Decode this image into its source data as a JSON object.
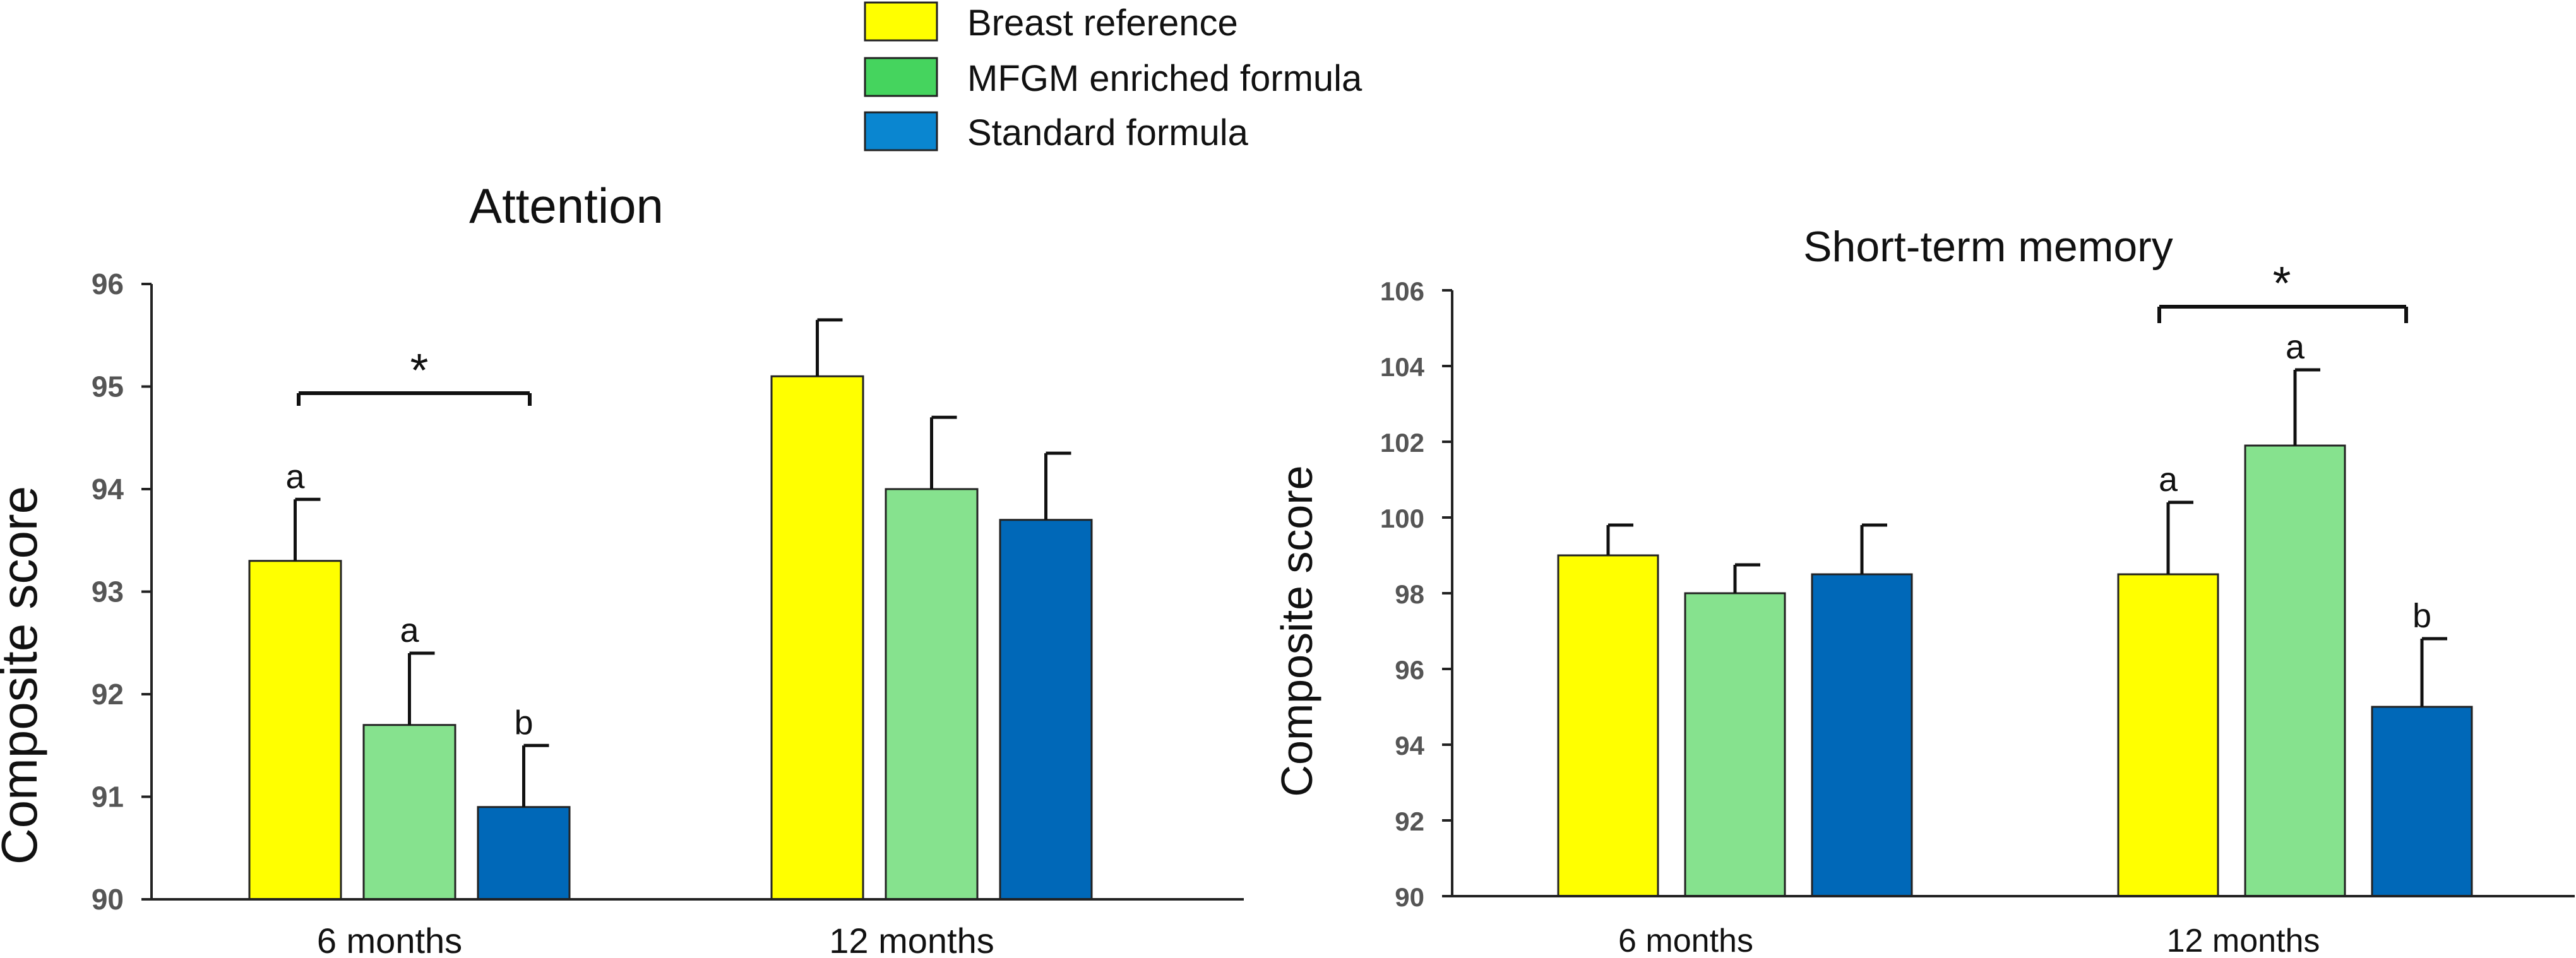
{
  "legend": [
    {
      "label": "Breast reference",
      "color": "#FFFF00"
    },
    {
      "label": "MFGM enriched formula",
      "color": "#45D45E"
    },
    {
      "label": "Standard formula",
      "color": "#0A86D0"
    }
  ],
  "series_colors": [
    "#FFFF00",
    "#86E28E",
    "#0068B8"
  ],
  "chart_data": [
    {
      "type": "bar",
      "title": "Attention",
      "xlabel": "",
      "ylabel": "Composite score",
      "ylim": [
        90,
        96
      ],
      "yticks": [
        "90",
        "91",
        "92",
        "93",
        "94",
        "95",
        "96"
      ],
      "categories": [
        "6 months",
        "12 months"
      ],
      "series": [
        {
          "name": "Breast reference",
          "values": [
            93.3,
            95.1
          ],
          "errors": [
            0.6,
            0.55
          ],
          "letters": [
            "a",
            ""
          ]
        },
        {
          "name": "MFGM enriched formula",
          "values": [
            91.7,
            94.0
          ],
          "errors": [
            0.7,
            0.7
          ],
          "letters": [
            "a",
            ""
          ]
        },
        {
          "name": "Standard formula",
          "values": [
            90.9,
            93.7
          ],
          "errors": [
            0.6,
            0.65
          ],
          "letters": [
            "b",
            ""
          ]
        }
      ],
      "significance": {
        "label": "*",
        "category": "6 months",
        "from_series": 0,
        "to_series": 2
      }
    },
    {
      "type": "bar",
      "title": "Short-term memory",
      "xlabel": "",
      "ylabel": "Composite score",
      "ylim": [
        90,
        106
      ],
      "yticks": [
        "90",
        "92",
        "94",
        "96",
        "98",
        "100",
        "102",
        "104",
        "106"
      ],
      "categories": [
        "6 months",
        "12 months"
      ],
      "series": [
        {
          "name": "Breast reference",
          "values": [
            99.0,
            98.5
          ],
          "errors": [
            0.8,
            1.9
          ],
          "letters": [
            "",
            "a"
          ]
        },
        {
          "name": "MFGM enriched formula",
          "values": [
            98.0,
            101.9
          ],
          "errors": [
            0.75,
            2.0
          ],
          "letters": [
            "",
            "a"
          ]
        },
        {
          "name": "Standard formula",
          "values": [
            98.5,
            95.0
          ],
          "errors": [
            1.3,
            1.8
          ],
          "letters": [
            "",
            "b"
          ]
        }
      ],
      "significance": {
        "label": "*",
        "category": "12 months",
        "from_series": 0,
        "to_series": 2
      }
    }
  ]
}
